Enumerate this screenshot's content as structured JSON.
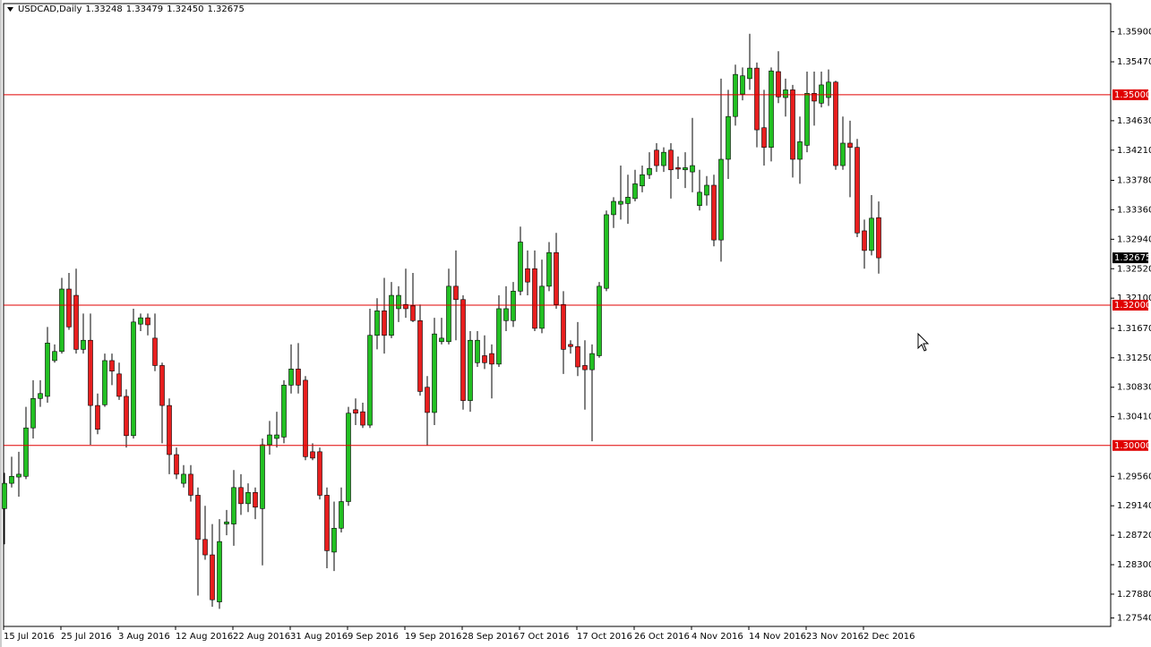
{
  "chart_data": {
    "type": "candlestick",
    "title": "USDCAD,Daily",
    "ohlc_labels": [
      "1.33248",
      "1.33479",
      "1.32450",
      "1.32675"
    ],
    "up_color": "#22c022",
    "down_color": "#e81e1e",
    "categories": [
      "15 Jul 2016",
      null,
      null,
      null,
      null,
      null,
      null,
      null,
      "25 Jul 2016",
      null,
      null,
      null,
      null,
      null,
      null,
      null,
      "3 Aug 2016",
      null,
      null,
      null,
      null,
      null,
      null,
      null,
      "12 Aug 2016",
      null,
      null,
      null,
      null,
      null,
      null,
      null,
      "22 Aug 2016",
      null,
      null,
      null,
      null,
      null,
      null,
      null,
      "31 Aug 2016",
      null,
      null,
      null,
      null,
      null,
      null,
      null,
      "9 Sep 2016",
      null,
      null,
      null,
      null,
      null,
      null,
      null,
      "19 Sep 2016",
      null,
      null,
      null,
      null,
      null,
      null,
      null,
      "28 Sep 2016",
      null,
      null,
      null,
      null,
      null,
      null,
      null,
      "7 Oct 2016",
      null,
      null,
      null,
      null,
      null,
      null,
      null,
      "17 Oct 2016",
      null,
      null,
      null,
      null,
      null,
      null,
      null,
      "26 Oct 2016",
      null,
      null,
      null,
      null,
      null,
      null,
      null,
      "4 Nov 2016",
      null,
      null,
      null,
      null,
      null,
      null,
      null,
      "14 Nov 2016",
      null,
      null,
      null,
      null,
      null,
      null,
      null,
      "23 Nov 2016",
      null,
      null,
      null,
      null,
      null,
      null,
      null,
      "2 Dec 2016",
      null,
      null
    ],
    "open": [
      1.291,
      1.2946,
      1.2955,
      1.2956,
      1.3025,
      1.3067,
      1.307,
      1.3121,
      1.3134,
      1.3223,
      1.3214,
      1.3137,
      1.315,
      1.3057,
      1.3058,
      1.3121,
      1.3102,
      1.307,
      1.3014,
      1.3173,
      1.3182,
      1.3153,
      1.3114,
      1.3057,
      1.2987,
      1.2946,
      1.2959,
      1.2929,
      1.2866,
      1.2844,
      1.2777,
      1.2888,
      1.2888,
      1.294,
      1.2917,
      1.2933,
      1.291,
      1.3001,
      1.301,
      1.3012,
      1.3086,
      1.3109,
      1.3093,
      1.2991,
      1.2991,
      1.2929,
      1.2848,
      1.2882,
      1.292,
      1.3051,
      1.3048,
      1.3029,
      1.3157,
      1.3192,
      1.3157,
      1.3195,
      1.3201,
      1.3199,
      1.3178,
      1.3083,
      1.3047,
      1.3148,
      1.3148,
      1.3227,
      1.3208,
      1.3064,
      1.3118,
      1.3128,
      1.3131,
      1.3116,
      1.3178,
      1.3178,
      1.322,
      1.3252,
      1.3252,
      1.3167,
      1.3227,
      1.3275,
      1.3201,
      1.3144,
      1.3141,
      1.3114,
      1.3108,
      1.3128,
      1.3224,
      1.3329,
      1.3344,
      1.3345,
      1.3352,
      1.337,
      1.3386,
      1.3421,
      1.3399,
      1.3421,
      1.3396,
      1.3393,
      1.339,
      1.3342,
      1.3357,
      1.3371,
      1.3293,
      1.3408,
      1.3469,
      1.3501,
      1.3523,
      1.3538,
      1.3453,
      1.3425,
      1.3533,
      1.3496,
      1.3507,
      1.3408,
      1.3428,
      1.3502,
      1.3488,
      1.3496,
      1.3518,
      1.3399,
      1.3431,
      1.3425,
      1.3306,
      1.3278,
      1.33248
    ],
    "high": [
      1.2961,
      1.2984,
      1.2991,
      1.3055,
      1.3093,
      1.3093,
      1.3169,
      1.3144,
      1.3239,
      1.3246,
      1.3252,
      1.3188,
      1.3188,
      1.3074,
      1.3131,
      1.3131,
      1.3118,
      1.308,
      1.3195,
      1.3188,
      1.3188,
      1.3188,
      1.3118,
      1.3067,
      1.2997,
      1.2972,
      1.2972,
      1.294,
      1.2914,
      1.2888,
      1.2895,
      1.2908,
      1.2965,
      1.2959,
      1.2946,
      1.294,
      1.301,
      1.3035,
      1.3048,
      1.3093,
      1.3144,
      1.3146,
      1.3099,
      1.3003,
      1.2997,
      1.294,
      1.292,
      1.294,
      1.3055,
      1.3067,
      1.3061,
      1.3195,
      1.321,
      1.3239,
      1.3233,
      1.3227,
      1.3252,
      1.3246,
      1.3201,
      1.3099,
      1.3182,
      1.3182,
      1.3252,
      1.3278,
      1.3214,
      1.3163,
      1.3163,
      1.3157,
      1.3144,
      1.3214,
      1.3227,
      1.3233,
      1.3312,
      1.3278,
      1.3278,
      1.3265,
      1.329,
      1.3303,
      1.322,
      1.315,
      1.3176,
      1.315,
      1.3144,
      1.3233,
      1.3335,
      1.3354,
      1.3399,
      1.3386,
      1.3393,
      1.3399,
      1.3418,
      1.3431,
      1.3425,
      1.3431,
      1.3412,
      1.3418,
      1.3467,
      1.3393,
      1.3384,
      1.3386,
      1.3523,
      1.3507,
      1.3543,
      1.3539,
      1.3587,
      1.3546,
      1.3507,
      1.3539,
      1.3562,
      1.3523,
      1.3514,
      1.3469,
      1.3533,
      1.3533,
      1.3533,
      1.3536,
      1.352,
      1.3469,
      1.3463,
      1.3437,
      1.3322,
      1.3357,
      1.33479
    ],
    "low": [
      1.2859,
      1.294,
      1.2927,
      1.2952,
      1.301,
      1.3055,
      1.3061,
      1.3118,
      1.3131,
      1.3165,
      1.3131,
      1.3131,
      1.3001,
      1.3016,
      1.3055,
      1.3086,
      1.3065,
      1.2997,
      1.301,
      1.3163,
      1.3157,
      1.3106,
      1.3003,
      1.2959,
      1.2952,
      1.294,
      1.292,
      1.2786,
      1.2837,
      1.277,
      1.2767,
      1.2872,
      1.2857,
      1.2901,
      1.2905,
      1.2895,
      1.2829,
      1.2987,
      1.2997,
      1.3003,
      1.3074,
      1.3074,
      1.2979,
      1.2979,
      1.2923,
      1.2825,
      1.2821,
      1.2876,
      1.2914,
      1.3029,
      1.3025,
      1.3025,
      1.3137,
      1.3131,
      1.3153,
      1.3176,
      1.3182,
      1.3176,
      1.3071,
      1.3,
      1.3029,
      1.3144,
      1.3144,
      1.315,
      1.3051,
      1.3048,
      1.3112,
      1.3109,
      1.3067,
      1.3112,
      1.3163,
      1.3169,
      1.3214,
      1.3214,
      1.3163,
      1.316,
      1.322,
      1.3195,
      1.3102,
      1.3131,
      1.3099,
      1.3051,
      1.3006,
      1.3125,
      1.322,
      1.331,
      1.3322,
      1.3316,
      1.3348,
      1.3361,
      1.338,
      1.339,
      1.339,
      1.3352,
      1.338,
      1.3367,
      1.3361,
      1.3335,
      1.3342,
      1.3284,
      1.3262,
      1.338,
      1.3456,
      1.3492,
      1.3507,
      1.3425,
      1.3399,
      1.3405,
      1.3488,
      1.3469,
      1.3382,
      1.3373,
      1.3418,
      1.3456,
      1.3482,
      1.3484,
      1.3393,
      1.3393,
      1.3354,
      1.3297,
      1.3252,
      1.3271,
      1.3245
    ],
    "close": [
      1.2946,
      1.2956,
      1.2959,
      1.3025,
      1.3067,
      1.3074,
      1.3146,
      1.3134,
      1.3223,
      1.3169,
      1.3137,
      1.315,
      1.3057,
      1.3023,
      1.3121,
      1.3106,
      1.307,
      1.3014,
      1.3176,
      1.3182,
      1.3172,
      1.3114,
      1.3057,
      1.2987,
      1.2959,
      1.2959,
      1.2929,
      1.2866,
      1.2844,
      1.278,
      1.2863,
      1.2891,
      1.294,
      1.2917,
      1.2933,
      1.2912,
      1.3001,
      1.3015,
      1.3015,
      1.3086,
      1.3109,
      1.3086,
      1.2984,
      1.2982,
      1.2929,
      1.285,
      1.2882,
      1.292,
      1.3046,
      1.3046,
      1.3029,
      1.3157,
      1.3192,
      1.3157,
      1.3214,
      1.3214,
      1.3195,
      1.3178,
      1.3077,
      1.3047,
      1.3159,
      1.3153,
      1.3227,
      1.3208,
      1.3064,
      1.315,
      1.315,
      1.3118,
      1.3116,
      1.3195,
      1.3195,
      1.322,
      1.329,
      1.3233,
      1.3167,
      1.3227,
      1.3275,
      1.3201,
      1.3137,
      1.3141,
      1.3112,
      1.3108,
      1.3131,
      1.3227,
      1.3329,
      1.3348,
      1.3348,
      1.3354,
      1.3373,
      1.3386,
      1.3395,
      1.3399,
      1.3418,
      1.3393,
      1.3394,
      1.3396,
      1.3399,
      1.3361,
      1.3371,
      1.3293,
      1.3408,
      1.3469,
      1.3529,
      1.3527,
      1.3538,
      1.345,
      1.3425,
      1.3534,
      1.3497,
      1.3507,
      1.3408,
      1.3433,
      1.3502,
      1.3491,
      1.3514,
      1.3518,
      1.3399,
      1.3431,
      1.3425,
      1.3303,
      1.3278,
      1.3324,
      1.32675
    ],
    "ylim": [
      1.2742,
      1.363
    ],
    "yticks": [
      {
        "value": 1.359,
        "label": "1.35900"
      },
      {
        "value": 1.3547,
        "label": "1.35470"
      },
      {
        "value": 1.3463,
        "label": "1.34630"
      },
      {
        "value": 1.3421,
        "label": "1.34210"
      },
      {
        "value": 1.3378,
        "label": "1.33780"
      },
      {
        "value": 1.3336,
        "label": "1.33360"
      },
      {
        "value": 1.3294,
        "label": "1.32940"
      },
      {
        "value": 1.3252,
        "label": "1.32520"
      },
      {
        "value": 1.321,
        "label": "1.32100"
      },
      {
        "value": 1.3167,
        "label": "1.31670"
      },
      {
        "value": 1.3125,
        "label": "1.31250"
      },
      {
        "value": 1.3083,
        "label": "1.30830"
      },
      {
        "value": 1.3041,
        "label": "1.30410"
      },
      {
        "value": 1.2956,
        "label": "1.29560"
      },
      {
        "value": 1.2914,
        "label": "1.29140"
      },
      {
        "value": 1.2872,
        "label": "1.28720"
      },
      {
        "value": 1.283,
        "label": "1.28300"
      },
      {
        "value": 1.2788,
        "label": "1.27880"
      },
      {
        "value": 1.2754,
        "label": "1.27540"
      }
    ],
    "hlines_color": "#e00000",
    "hlines": [
      {
        "value": 1.35,
        "label": "1.35000"
      },
      {
        "value": 1.32,
        "label": "1.32000"
      },
      {
        "value": 1.3,
        "label": "1.30000"
      }
    ],
    "last_price": {
      "value": 1.32675,
      "label": "1.32675"
    }
  }
}
